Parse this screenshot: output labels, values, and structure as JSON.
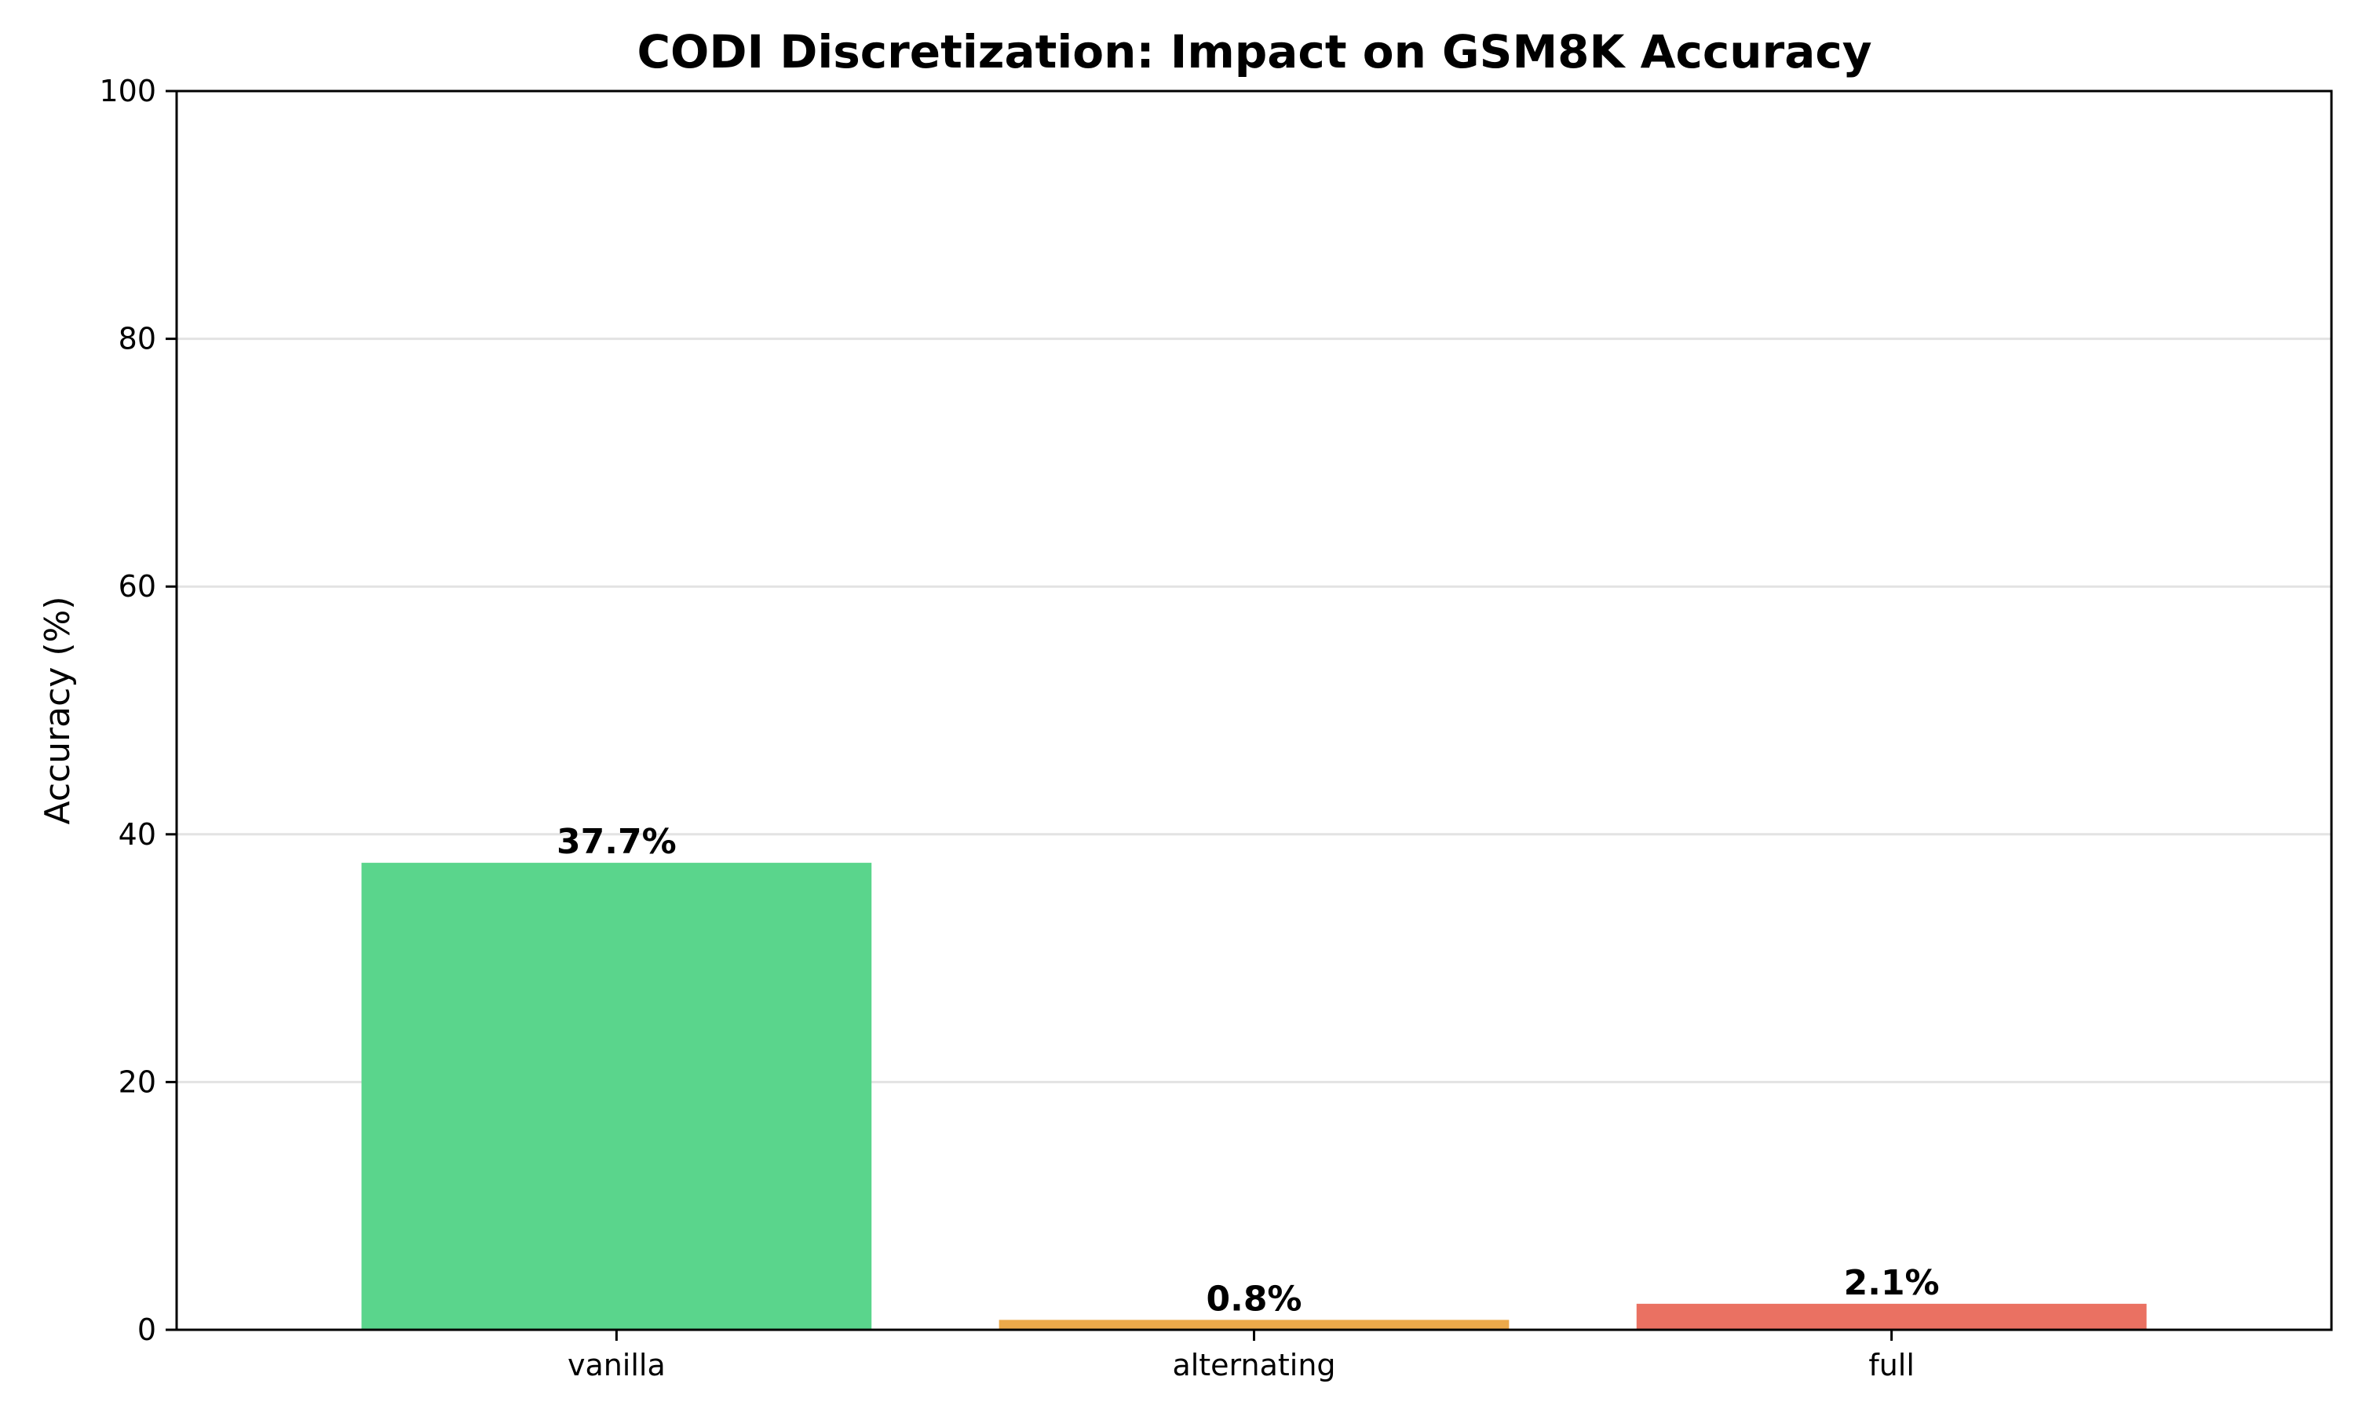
{
  "chart_data": {
    "type": "bar",
    "title": "CODI Discretization: Impact on GSM8K Accuracy",
    "xlabel": "",
    "ylabel": "Accuracy (%)",
    "categories": [
      "vanilla",
      "alternating",
      "full"
    ],
    "values": [
      37.7,
      0.8,
      2.1
    ],
    "data_labels": [
      "37.7%",
      "0.8%",
      "2.1%"
    ],
    "colors": [
      "#5ad58c",
      "#eba94a",
      "#ea7162"
    ],
    "ylim": [
      0,
      100
    ],
    "yticks": [
      0,
      20,
      40,
      60,
      80,
      100
    ],
    "ytick_labels": [
      "0",
      "20",
      "40",
      "60",
      "80",
      "100"
    ],
    "grid": "y",
    "legend": "none"
  }
}
